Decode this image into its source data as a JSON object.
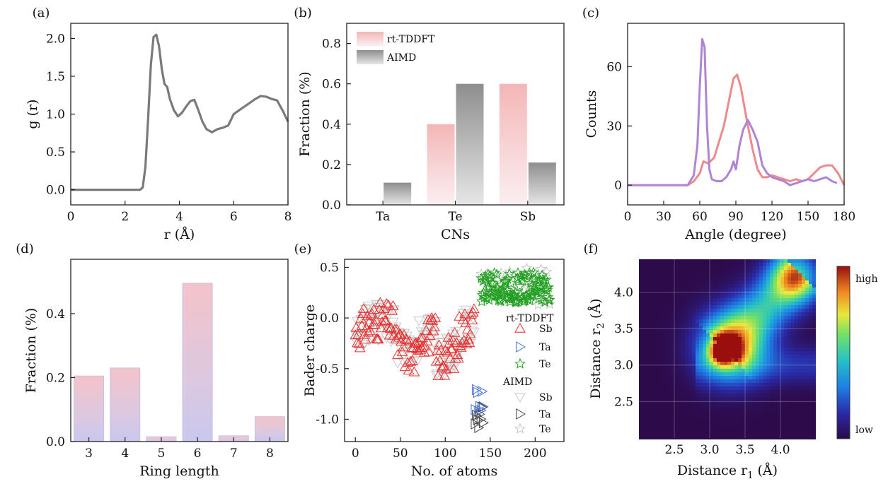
{
  "chart_data": [
    {
      "id": "a",
      "type": "line",
      "panel_label": "(a)",
      "xlabel": "r (Å)",
      "ylabel": "g (r)",
      "xlim": [
        0,
        8
      ],
      "ylim": [
        -0.2,
        2.2
      ],
      "xticks": [
        0,
        2,
        4,
        6,
        8
      ],
      "xtick_labels": [
        "0",
        "2",
        "4",
        "6",
        "8"
      ],
      "yticks": [
        0,
        0.5,
        1,
        1.5,
        2
      ],
      "ytick_labels": [
        "0.0",
        "0.5",
        "1.0",
        "1.5",
        "2.0"
      ],
      "color": "#7a7a7a",
      "series": [
        {
          "x": [
            0,
            0.5,
            1,
            1.5,
            2,
            2.4,
            2.55,
            2.65,
            2.75,
            2.85,
            2.95,
            3.05,
            3.15,
            3.25,
            3.35,
            3.45,
            3.55,
            3.65,
            3.8,
            3.95,
            4.1,
            4.25,
            4.4,
            4.55,
            4.7,
            4.85,
            5.0,
            5.2,
            5.4,
            5.6,
            5.8,
            6.0,
            6.2,
            6.4,
            6.6,
            6.8,
            7.0,
            7.2,
            7.4,
            7.6,
            7.8,
            8.0
          ],
          "y": [
            0,
            0,
            0,
            0,
            0,
            0,
            0,
            0.03,
            0.3,
            0.95,
            1.65,
            2.02,
            2.05,
            1.9,
            1.6,
            1.4,
            1.36,
            1.2,
            1.05,
            0.97,
            1.02,
            1.1,
            1.17,
            1.19,
            1.05,
            0.9,
            0.8,
            0.76,
            0.8,
            0.82,
            0.85,
            1.0,
            1.05,
            1.1,
            1.15,
            1.2,
            1.24,
            1.23,
            1.2,
            1.18,
            1.05,
            0.9
          ]
        }
      ]
    },
    {
      "id": "b",
      "type": "bar",
      "panel_label": "(b)",
      "xlabel": "CNs",
      "ylabel": "Fraction (%)",
      "categories": [
        "Ta",
        "Te",
        "Sb"
      ],
      "ylim": [
        0,
        0.9
      ],
      "yticks": [
        0,
        0.2,
        0.4,
        0.6,
        0.8
      ],
      "ytick_labels": [
        "0.0",
        "0.2",
        "0.4",
        "0.6",
        "0.8"
      ],
      "legend_position": "top-left",
      "series": [
        {
          "name": "rt-TDDFT",
          "values": [
            0,
            0.4,
            0.6
          ],
          "color": "#f4b6b7"
        },
        {
          "name": "AIMD",
          "values": [
            0.11,
            0.6,
            0.21
          ],
          "color": "#8e8e8e"
        }
      ]
    },
    {
      "id": "c",
      "type": "line",
      "panel_label": "(c)",
      "xlabel": "Angle (degree)",
      "ylabel": "Counts",
      "xlim": [
        0,
        180
      ],
      "ylim": [
        -10,
        82
      ],
      "xticks": [
        0,
        30,
        60,
        90,
        120,
        150,
        180
      ],
      "xtick_labels": [
        "0",
        "30",
        "60",
        "90",
        "120",
        "150",
        "180"
      ],
      "yticks": [
        0,
        30,
        60
      ],
      "ytick_labels": [
        "0",
        "30",
        "60"
      ],
      "series": [
        {
          "color": "#ef8a8c",
          "x": [
            0,
            20,
            40,
            50,
            55,
            60,
            63,
            67,
            72,
            76,
            80,
            85,
            88,
            91,
            94,
            97,
            100,
            104,
            108,
            112,
            116,
            120,
            125,
            130,
            135,
            140,
            145,
            150,
            155,
            160,
            165,
            170,
            175,
            180
          ],
          "y": [
            0,
            0,
            0,
            0,
            2,
            6,
            12,
            11,
            14,
            22,
            30,
            45,
            54,
            56,
            50,
            40,
            30,
            18,
            8,
            4,
            4,
            5,
            4,
            3,
            2,
            3,
            2,
            3,
            6,
            9,
            10,
            10,
            6,
            0
          ]
        },
        {
          "color": "#b084d4",
          "x": [
            0,
            20,
            40,
            50,
            55,
            58,
            60,
            62,
            64,
            66,
            68,
            70,
            74,
            78,
            82,
            86,
            88,
            90,
            93,
            96,
            100,
            104,
            108,
            112,
            116,
            120,
            125,
            130,
            135,
            140,
            145,
            150,
            155,
            160,
            165,
            170,
            174
          ],
          "y": [
            0,
            0,
            0,
            0,
            5,
            20,
            50,
            74,
            70,
            30,
            8,
            3,
            2,
            2,
            4,
            8,
            12,
            8,
            20,
            28,
            33,
            28,
            22,
            10,
            6,
            4,
            3,
            2,
            0,
            1,
            2,
            3,
            2,
            3,
            4,
            2,
            1
          ]
        }
      ]
    },
    {
      "id": "d",
      "type": "bar",
      "panel_label": "(d)",
      "xlabel": "Ring length",
      "ylabel": "Fraction (%)",
      "categories": [
        "3",
        "4",
        "5",
        "6",
        "7",
        "8"
      ],
      "values": [
        0.205,
        0.23,
        0.015,
        0.495,
        0.018,
        0.078
      ],
      "ylim": [
        0,
        0.57
      ],
      "yticks": [
        0,
        0.2,
        0.4
      ],
      "ytick_labels": [
        "0.0",
        "0.2",
        "0.4"
      ],
      "colors": {
        "top": "#f4c3c9",
        "bottom": "#c9c8ee",
        "edge": "#c6c1ea"
      }
    },
    {
      "id": "e",
      "type": "scatter",
      "panel_label": "(e)",
      "xlabel": "No. of atoms",
      "ylabel": "Bader charge",
      "xlim": [
        -12,
        232
      ],
      "ylim": [
        -1.22,
        0.58
      ],
      "xticks": [
        0,
        50,
        100,
        150,
        200
      ],
      "xtick_labels": [
        "0",
        "50",
        "100",
        "150",
        "200"
      ],
      "yticks": [
        -1,
        -0.5,
        0,
        0.5
      ],
      "ytick_labels": [
        "-1.0",
        "-0.5",
        "0.0",
        "0.5"
      ],
      "legend_position": "right",
      "legend_groups": [
        "rt-TDDFT",
        "AIMD"
      ],
      "series": [
        {
          "group": "rt-TDDFT",
          "name": "Sb",
          "marker": "triangle-up",
          "color": "#e83030",
          "x_range": [
            0,
            132
          ],
          "count": 130,
          "baseline": -0.15
        },
        {
          "group": "rt-TDDFT",
          "name": "Ta",
          "marker": "triangle-right",
          "color": "#3f6fe0",
          "x_range": [
            133,
            142
          ],
          "count": 8,
          "baseline": -0.8
        },
        {
          "group": "rt-TDDFT",
          "name": "Te",
          "marker": "star",
          "color": "#22a022",
          "x_range": [
            140,
            216
          ],
          "count": 120,
          "y_range": [
            0.15,
            0.45
          ]
        },
        {
          "group": "AIMD",
          "name": "Sb",
          "marker": "triangle-down",
          "color": "#c8c8c8",
          "x_range": [
            0,
            132
          ],
          "count": 130,
          "baseline": -0.15
        },
        {
          "group": "AIMD",
          "name": "Ta",
          "marker": "triangle-right",
          "color": "#444444",
          "x_range": [
            133,
            142
          ],
          "count": 8,
          "baseline": -0.95
        },
        {
          "group": "AIMD",
          "name": "Te",
          "marker": "star",
          "color": "#c8c8c8",
          "x_range": [
            140,
            216
          ],
          "count": 25,
          "y_range": [
            0.1,
            0.5
          ]
        }
      ]
    },
    {
      "id": "f",
      "type": "heatmap",
      "panel_label": "(f)",
      "xlabel": "Distance r",
      "xlabel_sub": "1",
      "xlabel_suffix": " (Å)",
      "ylabel": "Distance r",
      "ylabel_sub": "2",
      "ylabel_suffix": " (Å)",
      "xlim": [
        2.0,
        4.5
      ],
      "ylim": [
        2.0,
        4.45
      ],
      "xticks": [
        2.5,
        3.0,
        3.5,
        4.0
      ],
      "xtick_labels": [
        "2.5",
        "3.0",
        "3.5",
        "4.0"
      ],
      "yticks": [
        2.5,
        3.0,
        3.5,
        4.0
      ],
      "ytick_labels": [
        "2.5",
        "3.0",
        "3.5",
        "4.0"
      ],
      "colorbar_labels": {
        "high": "high",
        "low": "low"
      },
      "peaks": [
        {
          "x": 3.2,
          "y": 3.2,
          "amp": 1.0
        },
        {
          "x": 4.2,
          "y": 4.2,
          "amp": 0.55
        }
      ]
    }
  ]
}
